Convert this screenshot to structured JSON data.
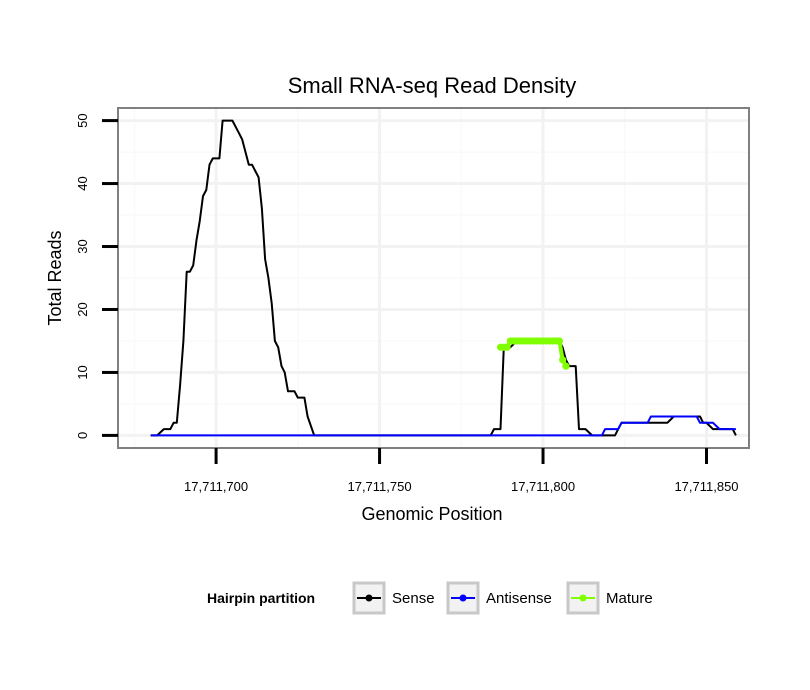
{
  "chart_data": {
    "type": "line",
    "title": "Small RNA-seq Read Density",
    "xlabel": "Genomic Position",
    "ylabel": "Total Reads",
    "xlim": [
      17711670,
      17711863
    ],
    "ylim": [
      -2,
      52
    ],
    "x_ticks": [
      17711700,
      17711750,
      17711800,
      17711850
    ],
    "x_tick_labels": [
      "17,711,700",
      "17,711,750",
      "17,711,800",
      "17,711,850"
    ],
    "y_ticks": [
      0,
      10,
      20,
      30,
      40,
      50
    ],
    "y_tick_labels": [
      "0",
      "10",
      "20",
      "30",
      "40",
      "50"
    ],
    "legend": {
      "title": "Hairpin partition",
      "position": "bottom",
      "entries": [
        "Sense",
        "Antisense",
        "Mature"
      ]
    },
    "series": [
      {
        "name": "Sense",
        "color": "#000000",
        "x": [
          17711680,
          17711682,
          17711684,
          17711685,
          17711686,
          17711687,
          17711688,
          17711689,
          17711690,
          17711691,
          17711692,
          17711693,
          17711694,
          17711695,
          17711696,
          17711697,
          17711698,
          17711699,
          17711700,
          17711701,
          17711702,
          17711703,
          17711704,
          17711705,
          17711706,
          17711707,
          17711708,
          17711709,
          17711710,
          17711711,
          17711712,
          17711713,
          17711714,
          17711715,
          17711716,
          17711717,
          17711718,
          17711719,
          17711720,
          17711721,
          17711722,
          17711723,
          17711724,
          17711725,
          17711726,
          17711727,
          17711728,
          17711730,
          17711740,
          17711750,
          17711760,
          17711770,
          17711780,
          17711784,
          17711785,
          17711786,
          17711787,
          17711788,
          17711790,
          17711792,
          17711795,
          17711800,
          17711805,
          17711806,
          17711807,
          17711808,
          17711809,
          17711810,
          17711811,
          17711812,
          17711813,
          17711815,
          17711820,
          17711822,
          17711823,
          17711824,
          17711826,
          17711828,
          17711830,
          17711832,
          17711834,
          17711836,
          17711838,
          17711840,
          17711842,
          17711844,
          17711846,
          17711847,
          17711848,
          17711849,
          17711850,
          17711852,
          17711854,
          17711856,
          17711857,
          17711858,
          17711859
        ],
        "values": [
          0,
          0,
          1,
          1,
          1,
          2,
          2,
          8,
          15,
          26,
          26,
          27,
          31,
          34,
          38,
          39,
          43,
          44,
          44,
          44,
          50,
          50,
          50,
          50,
          49,
          48,
          47,
          45,
          43,
          43,
          42,
          41,
          36,
          28,
          25,
          21,
          15,
          14,
          11,
          10,
          7,
          7,
          7,
          6,
          6,
          6,
          3,
          0,
          0,
          0,
          0,
          0,
          0,
          0,
          1,
          1,
          1,
          14,
          14,
          15,
          15,
          15,
          15,
          14,
          12,
          11,
          11,
          11,
          1,
          1,
          1,
          0,
          0,
          0,
          1,
          2,
          2,
          2,
          2,
          2,
          2,
          2,
          2,
          3,
          3,
          3,
          3,
          3,
          3,
          2,
          2,
          1,
          1,
          1,
          1,
          1,
          0
        ]
      },
      {
        "name": "Antisense",
        "color": "#0000ff",
        "x": [
          17711680,
          17711700,
          17711727,
          17711750,
          17711800,
          17711810,
          17711817,
          17711818,
          17711819,
          17711820,
          17711821,
          17711822,
          17711823,
          17711824,
          17711826,
          17711828,
          17711830,
          17711832,
          17711833,
          17711834,
          17711836,
          17711838,
          17711840,
          17711842,
          17711844,
          17711846,
          17711847,
          17711848,
          17711849,
          17711850,
          17711851,
          17711852,
          17711854,
          17711856,
          17711858,
          17711859
        ],
        "values": [
          0,
          0,
          0,
          0,
          0,
          0,
          0,
          0,
          1,
          1,
          1,
          1,
          1,
          2,
          2,
          2,
          2,
          2,
          3,
          3,
          3,
          3,
          3,
          3,
          3,
          3,
          3,
          2,
          2,
          2,
          2,
          2,
          1,
          1,
          1,
          1
        ]
      },
      {
        "name": "Mature",
        "color": "#80ff00",
        "x": [
          17711787,
          17711788,
          17711789,
          17711790,
          17711791,
          17711792,
          17711793,
          17711794,
          17711795,
          17711796,
          17711797,
          17711798,
          17711799,
          17711800,
          17711801,
          17711802,
          17711803,
          17711804,
          17711805,
          17711806,
          17711807
        ],
        "values": [
          14,
          14,
          14,
          15,
          15,
          15,
          15,
          15,
          15,
          15,
          15,
          15,
          15,
          15,
          15,
          15,
          15,
          15,
          15,
          12,
          11
        ]
      }
    ]
  }
}
